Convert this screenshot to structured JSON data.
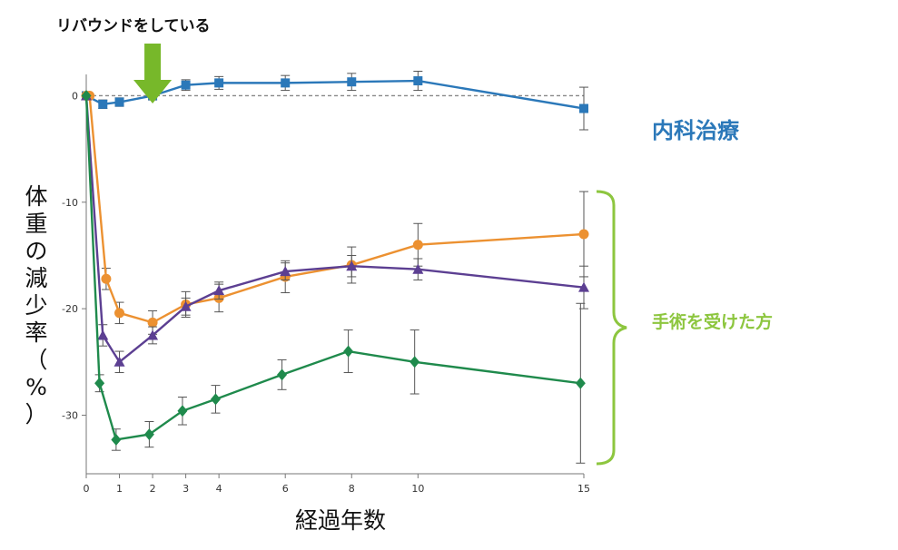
{
  "chart_data": {
    "type": "line",
    "title": "",
    "xlabel": "経過年数",
    "ylabel_chars": [
      "体",
      "重",
      "の",
      "減",
      "少",
      "率",
      "（",
      "%",
      "）"
    ],
    "x_ticks": [
      0,
      1,
      2,
      3,
      4,
      6,
      8,
      10,
      15
    ],
    "y_ticks": [
      0,
      -10,
      -20,
      -30
    ],
    "xlim": [
      0,
      15
    ],
    "ylim": [
      -35.5,
      2
    ],
    "grid": false,
    "reference_line_y": 0,
    "annotations": {
      "rebound_text": "リバウンドをしている",
      "rebound_arrow_x": 2,
      "medical_label": "内科治療",
      "surgery_label": "手術を受けた方"
    },
    "colors": {
      "medical": "#2b78b9",
      "orange": "#ec9131",
      "purple": "#5c3f92",
      "green": "#1f8a4c",
      "bracket": "#8dc63f",
      "arrow": "#77b82a"
    },
    "series": [
      {
        "color": "#2b78b9",
        "marker": "square",
        "x": [
          0,
          0.5,
          1,
          2,
          3,
          4,
          6,
          8,
          10,
          15
        ],
        "y": [
          0,
          -0.8,
          -0.6,
          0,
          1,
          1.2,
          1.2,
          1.3,
          1.4,
          -1.2
        ],
        "err": [
          0,
          0.4,
          0.4,
          0.4,
          0.5,
          0.6,
          0.7,
          0.8,
          0.9,
          2
        ]
      },
      {
        "color": "#ec9131",
        "marker": "circle",
        "x": [
          0,
          0.1,
          0.6,
          1,
          2,
          3,
          4,
          6,
          8,
          10,
          15
        ],
        "y": [
          0,
          0,
          -17.2,
          -20.4,
          -21.3,
          -19.6,
          -19,
          -17,
          -15.9,
          -14,
          -13
        ],
        "err": [
          0,
          0,
          1,
          1,
          1.1,
          1.2,
          1.3,
          1.5,
          1.7,
          2,
          4
        ]
      },
      {
        "color": "#5c3f92",
        "marker": "triangle",
        "x": [
          0,
          0.5,
          1,
          2,
          3,
          4,
          6,
          8,
          10,
          15
        ],
        "y": [
          0,
          -22.5,
          -25,
          -22.5,
          -19.8,
          -18.3,
          -16.5,
          -16,
          -16.3,
          -18
        ],
        "err": [
          0,
          1,
          1,
          0.8,
          0.8,
          0.8,
          0.8,
          1,
          1,
          2
        ]
      },
      {
        "color": "#1f8a4c",
        "marker": "diamond",
        "x": [
          0,
          0.4,
          0.9,
          1.9,
          2.9,
          3.9,
          5.9,
          7.9,
          9.9,
          14.9
        ],
        "y": [
          0,
          -27,
          -32.3,
          -31.8,
          -29.6,
          -28.5,
          -26.2,
          -24,
          -25,
          -27
        ],
        "err": [
          0,
          0.8,
          1,
          1.2,
          1.3,
          1.3,
          1.4,
          2,
          3,
          7.5
        ]
      }
    ]
  }
}
